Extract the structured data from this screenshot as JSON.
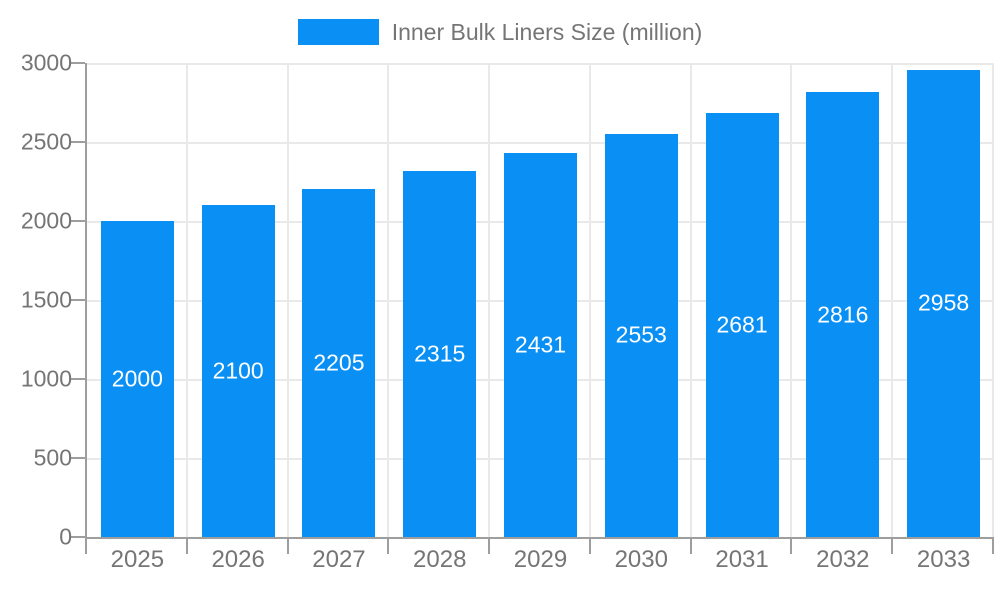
{
  "legend": {
    "label": "Inner Bulk Liners Size (million)"
  },
  "colors": {
    "bar": "#0a90f5",
    "axis": "#9e9e9e",
    "grid": "#e9e9e9",
    "tick_label": "#757575",
    "legend_text": "#757575",
    "bar_label": "#ffffff",
    "background": "#ffffff"
  },
  "chart_data": {
    "type": "bar",
    "title": "",
    "categories": [
      "2025",
      "2026",
      "2027",
      "2028",
      "2029",
      "2030",
      "2031",
      "2032",
      "2033"
    ],
    "series": [
      {
        "name": "Inner Bulk Liners Size (million)",
        "values": [
          2000,
          2100,
          2205,
          2315,
          2431,
          2553,
          2681,
          2816,
          2958
        ]
      }
    ],
    "xlabel": "",
    "ylabel": "",
    "ylim": [
      0,
      3000
    ],
    "y_ticks": [
      0,
      500,
      1000,
      1500,
      2000,
      2500,
      3000
    ],
    "grid": true,
    "legend_position": "top",
    "bar_labels_inside": true
  }
}
